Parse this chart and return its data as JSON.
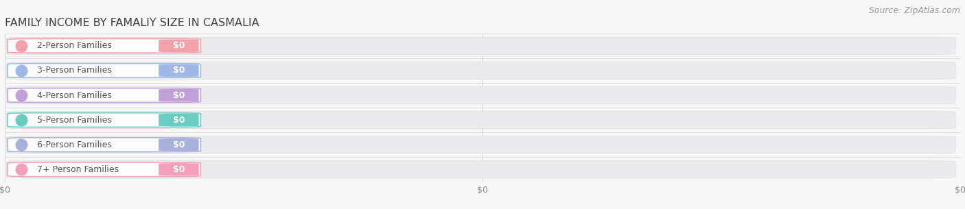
{
  "title": "FAMILY INCOME BY FAMALIY SIZE IN CASMALIA",
  "source": "Source: ZipAtlas.com",
  "categories": [
    "2-Person Families",
    "3-Person Families",
    "4-Person Families",
    "5-Person Families",
    "6-Person Families",
    "7+ Person Families"
  ],
  "values": [
    0,
    0,
    0,
    0,
    0,
    0
  ],
  "bar_colors": [
    "#f2a0aa",
    "#a0b8e8",
    "#c0a0d8",
    "#68ccc0",
    "#a8b0dc",
    "#f4a0bc"
  ],
  "bg_color": "#f7f7f7",
  "bar_track_color": "#ebebee",
  "title_color": "#404040",
  "source_color": "#999999",
  "tick_label_color": "#888888",
  "pill_border_alpha": 0.6,
  "xlim": [
    0,
    1
  ],
  "title_fontsize": 11.5,
  "source_fontsize": 9,
  "label_fontsize": 9,
  "value_fontsize": 9,
  "tick_fontsize": 9,
  "xtick_positions": [
    0.0,
    0.5,
    1.0
  ],
  "xtick_labels": [
    "$0",
    "$0",
    "$0"
  ]
}
